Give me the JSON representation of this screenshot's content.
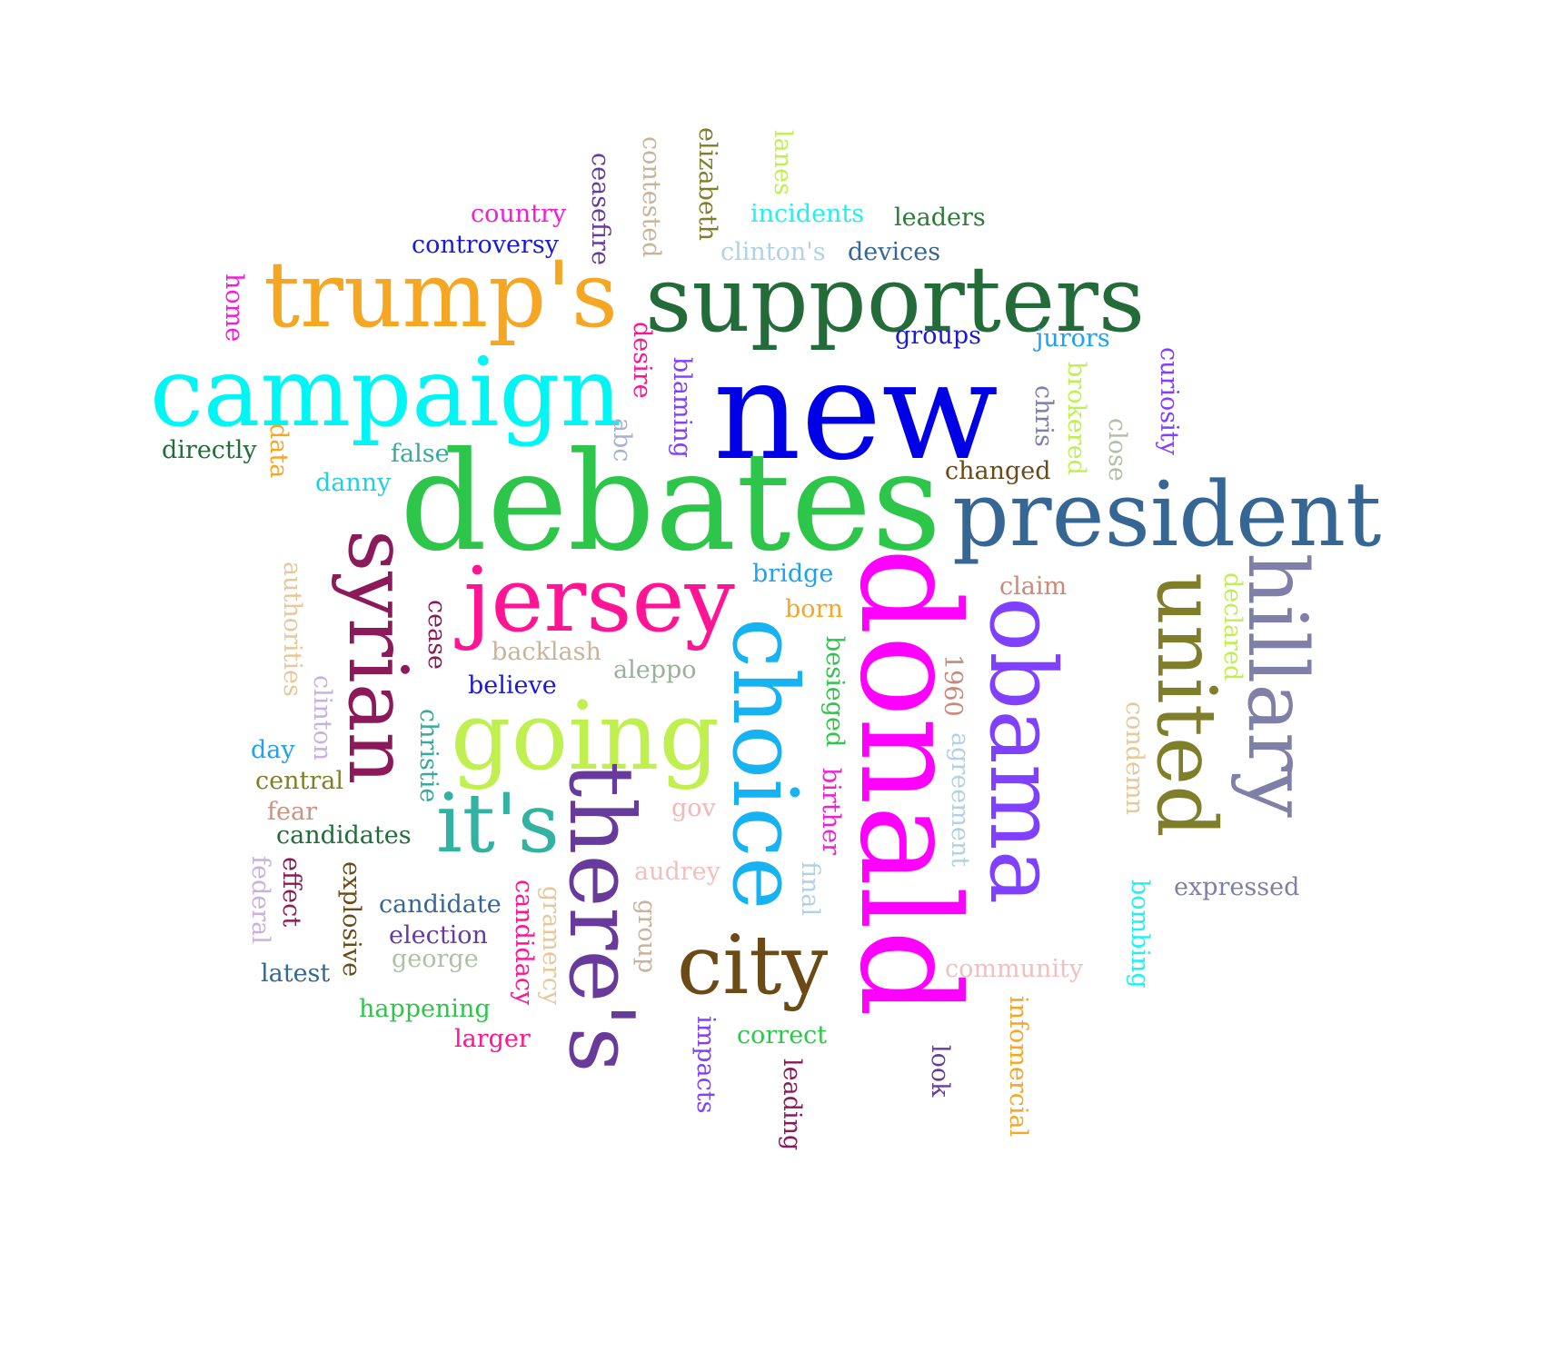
{
  "words": [
    {
      "text": "new",
      "color": "#0000e6"
    },
    {
      "text": "debates",
      "color": "#2ec64a"
    },
    {
      "text": "donald",
      "color": "#ff00ff"
    },
    {
      "text": "supporters",
      "color": "#246b3a"
    },
    {
      "text": "campaign",
      "color": "#00f5f5"
    },
    {
      "text": "trump's",
      "color": "#f5a623"
    },
    {
      "text": "president",
      "color": "#356694"
    },
    {
      "text": "obama",
      "color": "#8040ff"
    },
    {
      "text": "hillary",
      "color": "#7f7fa8"
    },
    {
      "text": "united",
      "color": "#7f7f2a"
    },
    {
      "text": "choice",
      "color": "#16b2f2"
    },
    {
      "text": "syrian",
      "color": "#8c1a5a"
    },
    {
      "text": "jersey",
      "color": "#ff1493"
    },
    {
      "text": "going",
      "color": "#c0f050"
    },
    {
      "text": "there's",
      "color": "#673a9c"
    },
    {
      "text": "it's",
      "color": "#32b2a0"
    },
    {
      "text": "city",
      "color": "#6b4a16"
    },
    {
      "text": "country",
      "color": "#f020d0"
    },
    {
      "text": "controversy",
      "color": "#1a1ad6"
    },
    {
      "text": "incidents",
      "color": "#20f0f0"
    },
    {
      "text": "leaders",
      "color": "#2e7a3a"
    },
    {
      "text": "clinton's",
      "color": "#b0d2e4"
    },
    {
      "text": "devices",
      "color": "#356694"
    },
    {
      "text": "groups",
      "color": "#1a1ad6"
    },
    {
      "text": "jurors",
      "color": "#20a0f0"
    },
    {
      "text": "directly",
      "color": "#246b3a"
    },
    {
      "text": "false",
      "color": "#3aa89a"
    },
    {
      "text": "danny",
      "color": "#20d0e0"
    },
    {
      "text": "changed",
      "color": "#6b4a16"
    },
    {
      "text": "bridge",
      "color": "#20a0f0"
    },
    {
      "text": "claim",
      "color": "#c88a7a"
    },
    {
      "text": "born",
      "color": "#f5a623"
    },
    {
      "text": "backlash",
      "color": "#c8b49a"
    },
    {
      "text": "aleppo",
      "color": "#9ab09a"
    },
    {
      "text": "believe",
      "color": "#1a1ad6"
    },
    {
      "text": "day",
      "color": "#20a0f0"
    },
    {
      "text": "central",
      "color": "#7f7f2a"
    },
    {
      "text": "fear",
      "color": "#d09080"
    },
    {
      "text": "candidates",
      "color": "#246b3a"
    },
    {
      "text": "gov",
      "color": "#f0b8b8"
    },
    {
      "text": "audrey",
      "color": "#f0c0c0"
    },
    {
      "text": "expressed",
      "color": "#7f7fa8"
    },
    {
      "text": "candidate",
      "color": "#356694"
    },
    {
      "text": "election",
      "color": "#673a9c"
    },
    {
      "text": "george",
      "color": "#b0c0a8"
    },
    {
      "text": "latest",
      "color": "#356694"
    },
    {
      "text": "community",
      "color": "#f0c0c0"
    },
    {
      "text": "happening",
      "color": "#2ec64a"
    },
    {
      "text": "correct",
      "color": "#2ec64a"
    },
    {
      "text": "larger",
      "color": "#ff1493"
    },
    {
      "text": "home",
      "color": "#f020d0"
    },
    {
      "text": "ceasefire",
      "color": "#673a9c"
    },
    {
      "text": "contested",
      "color": "#c8b49a"
    },
    {
      "text": "elizabeth",
      "color": "#7f7f2a"
    },
    {
      "text": "lanes",
      "color": "#c0f050"
    },
    {
      "text": "desire",
      "color": "#ff1493"
    },
    {
      "text": "blaming",
      "color": "#8040ff"
    },
    {
      "text": "abc",
      "color": "#a8b0d0"
    },
    {
      "text": "data",
      "color": "#f5a623"
    },
    {
      "text": "chris",
      "color": "#7f7fa8"
    },
    {
      "text": "brokered",
      "color": "#c0f050"
    },
    {
      "text": "close",
      "color": "#b0c0a8"
    },
    {
      "text": "curiosity",
      "color": "#8040ff"
    },
    {
      "text": "authorities",
      "color": "#e8c89a"
    },
    {
      "text": "cease",
      "color": "#8c1a5a"
    },
    {
      "text": "clinton",
      "color": "#c8b0e0"
    },
    {
      "text": "christie",
      "color": "#3aa89a"
    },
    {
      "text": "besieged",
      "color": "#2ec64a"
    },
    {
      "text": "1960",
      "color": "#c88a7a"
    },
    {
      "text": "agreement",
      "color": "#b0d2e4"
    },
    {
      "text": "birther",
      "color": "#f020d0"
    },
    {
      "text": "declared",
      "color": "#c0f050"
    },
    {
      "text": "condemn",
      "color": "#e8c89a"
    },
    {
      "text": "federal",
      "color": "#c8b0e0"
    },
    {
      "text": "effect",
      "color": "#8c1a5a"
    },
    {
      "text": "explosive",
      "color": "#6b4a16"
    },
    {
      "text": "candidacy",
      "color": "#ff1493"
    },
    {
      "text": "gramercy",
      "color": "#e8c89a"
    },
    {
      "text": "group",
      "color": "#c8b49a"
    },
    {
      "text": "final",
      "color": "#b0d2e4"
    },
    {
      "text": "impacts",
      "color": "#8040ff"
    },
    {
      "text": "leading",
      "color": "#8c1a5a"
    },
    {
      "text": "look",
      "color": "#673a9c"
    },
    {
      "text": "infomercial",
      "color": "#f5a623"
    },
    {
      "text": "bombing",
      "color": "#20f0f0"
    }
  ]
}
